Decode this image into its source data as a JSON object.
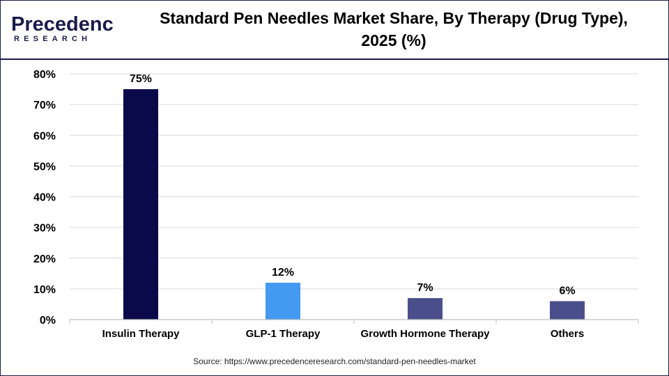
{
  "header": {
    "logo_word": "Precedence",
    "logo_sub": "RESEARCH",
    "title_line1": "Standard Pen Needles Market Share, By Therapy (Drug Type),",
    "title_line2": "2025 (%)"
  },
  "chart_data": {
    "type": "bar",
    "categories": [
      "Insulin Therapy",
      "GLP-1 Therapy",
      "Growth Hormone Therapy",
      "Others"
    ],
    "values": [
      75,
      12,
      7,
      6
    ],
    "data_labels": [
      "75%",
      "12%",
      "7%",
      "6%"
    ],
    "ylim": [
      0,
      80
    ],
    "yticks": [
      0,
      10,
      20,
      30,
      40,
      50,
      60,
      70,
      80
    ],
    "ytick_labels": [
      "0%",
      "10%",
      "20%",
      "30%",
      "40%",
      "50%",
      "60%",
      "70%",
      "80%"
    ],
    "bar_colors": [
      "#0a0a4a",
      "#4499f0",
      "#4a4f8c",
      "#4a4f8c"
    ],
    "grid": true,
    "legend": "none"
  },
  "footer": {
    "source": "Source: https://www.precedenceresearch.com/standard-pen-needles-market"
  }
}
